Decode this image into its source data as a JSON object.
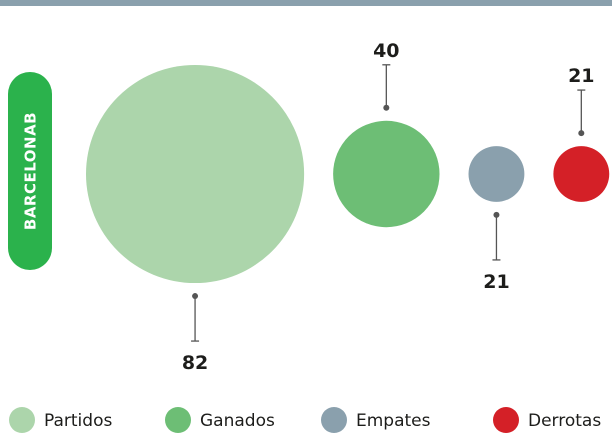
{
  "chart_data": {
    "type": "bubble",
    "label": "BARCELONAB",
    "categories": [
      "Partidos",
      "Ganados",
      "Empates",
      "Derrotas"
    ],
    "values": [
      82,
      40,
      21,
      21
    ],
    "colors": [
      "#acd5ab",
      "#6dbe75",
      "#8aa0ad",
      "#d42027"
    ]
  }
}
